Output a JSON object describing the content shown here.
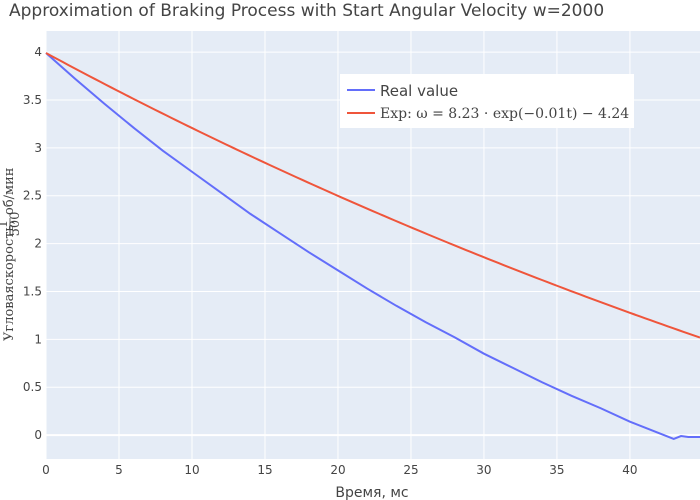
{
  "chart_data": {
    "type": "line",
    "title": "Approximation of Braking Process with Start Angular Velocity w=2000",
    "xlabel": "Время, мс",
    "ylabel": {
      "main": "Угловаяскорость,",
      "frac_num": "1",
      "frac_den": "500",
      "unit": "об/мин"
    },
    "xlim": [
      0,
      44.8
    ],
    "ylim": [
      -0.25,
      4.22
    ],
    "x_ticks": [
      0,
      5,
      10,
      15,
      20,
      25,
      30,
      35,
      40
    ],
    "y_ticks": [
      0,
      0.5,
      1,
      1.5,
      2,
      2.5,
      3,
      3.5,
      4
    ],
    "grid": true,
    "background": "#e5ecf6",
    "legend_position": "top-right",
    "series": [
      {
        "name": "Real value",
        "color": "#636efa",
        "x": [
          0,
          2,
          4,
          6,
          8,
          10,
          12,
          14,
          16,
          18,
          20,
          22,
          24,
          26,
          28,
          30,
          32,
          34,
          36,
          38,
          40,
          42,
          43,
          43.5,
          44,
          44.8
        ],
        "y": [
          3.99,
          3.72,
          3.46,
          3.21,
          2.97,
          2.75,
          2.53,
          2.31,
          2.11,
          1.91,
          1.72,
          1.53,
          1.35,
          1.18,
          1.02,
          0.85,
          0.7,
          0.55,
          0.41,
          0.28,
          0.14,
          0.02,
          -0.04,
          -0.01,
          -0.02,
          -0.02
        ]
      },
      {
        "name": "Exp: ω = 8.23 · exp(−0.01t) − 4.24",
        "color": "#ef553b",
        "formula": {
          "a": 8.23,
          "b": -0.01,
          "c": -4.24
        },
        "x_range": [
          0,
          44.8
        ]
      }
    ]
  }
}
